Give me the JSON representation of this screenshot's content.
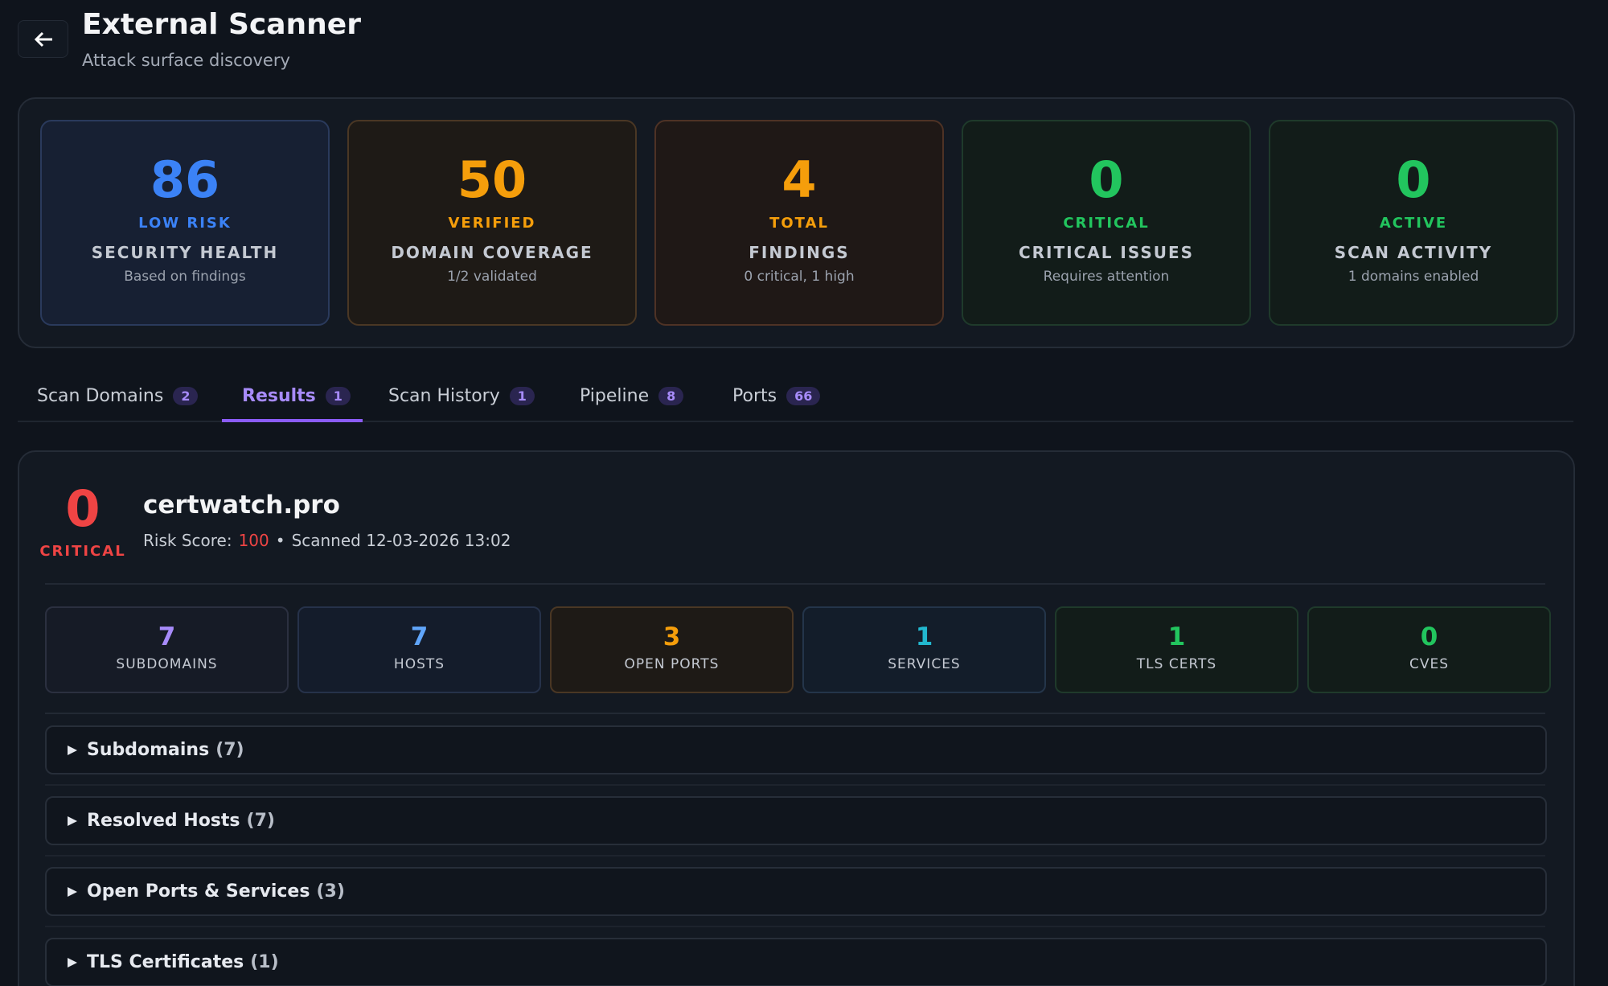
{
  "header": {
    "title": "External Scanner",
    "subtitle": "Attack surface discovery"
  },
  "stats": [
    {
      "value": 86,
      "status": "LOW RISK",
      "label": "SECURITY HEALTH",
      "note": "Based on findings"
    },
    {
      "value": 50,
      "status": "VERIFIED",
      "label": "DOMAIN COVERAGE",
      "note": "1/2 validated"
    },
    {
      "value": 4,
      "status": "TOTAL",
      "label": "FINDINGS",
      "note": "0 critical, 1 high"
    },
    {
      "value": 0,
      "status": "CRITICAL",
      "label": "CRITICAL ISSUES",
      "note": "Requires attention"
    },
    {
      "value": 0,
      "status": "ACTIVE",
      "label": "SCAN ACTIVITY",
      "note": "1 domains enabled"
    }
  ],
  "tabs": [
    {
      "label": "Scan Domains",
      "count": 2
    },
    {
      "label": "Results",
      "count": 1
    },
    {
      "label": "Scan History",
      "count": 1
    },
    {
      "label": "Pipeline",
      "count": 8
    },
    {
      "label": "Ports",
      "count": 66
    }
  ],
  "result": {
    "score": 0,
    "grade": "CRITICAL",
    "domain": "certwatch.pro",
    "risk_label": "Risk Score:",
    "risk_score": 100,
    "separator": "•",
    "scanned": "Scanned 12-03-2026 13:02"
  },
  "metrics": [
    {
      "value": 7,
      "label": "SUBDOMAINS"
    },
    {
      "value": 7,
      "label": "HOSTS"
    },
    {
      "value": 3,
      "label": "OPEN PORTS"
    },
    {
      "value": 1,
      "label": "SERVICES"
    },
    {
      "value": 1,
      "label": "TLS CERTS"
    },
    {
      "value": 0,
      "label": "CVES"
    }
  ],
  "sections": [
    {
      "title": "Subdomains",
      "count": "(7)"
    },
    {
      "title": "Resolved Hosts",
      "count": "(7)"
    },
    {
      "title": "Open Ports & Services",
      "count": "(3)"
    },
    {
      "title": "TLS Certificates",
      "count": "(1)"
    }
  ]
}
